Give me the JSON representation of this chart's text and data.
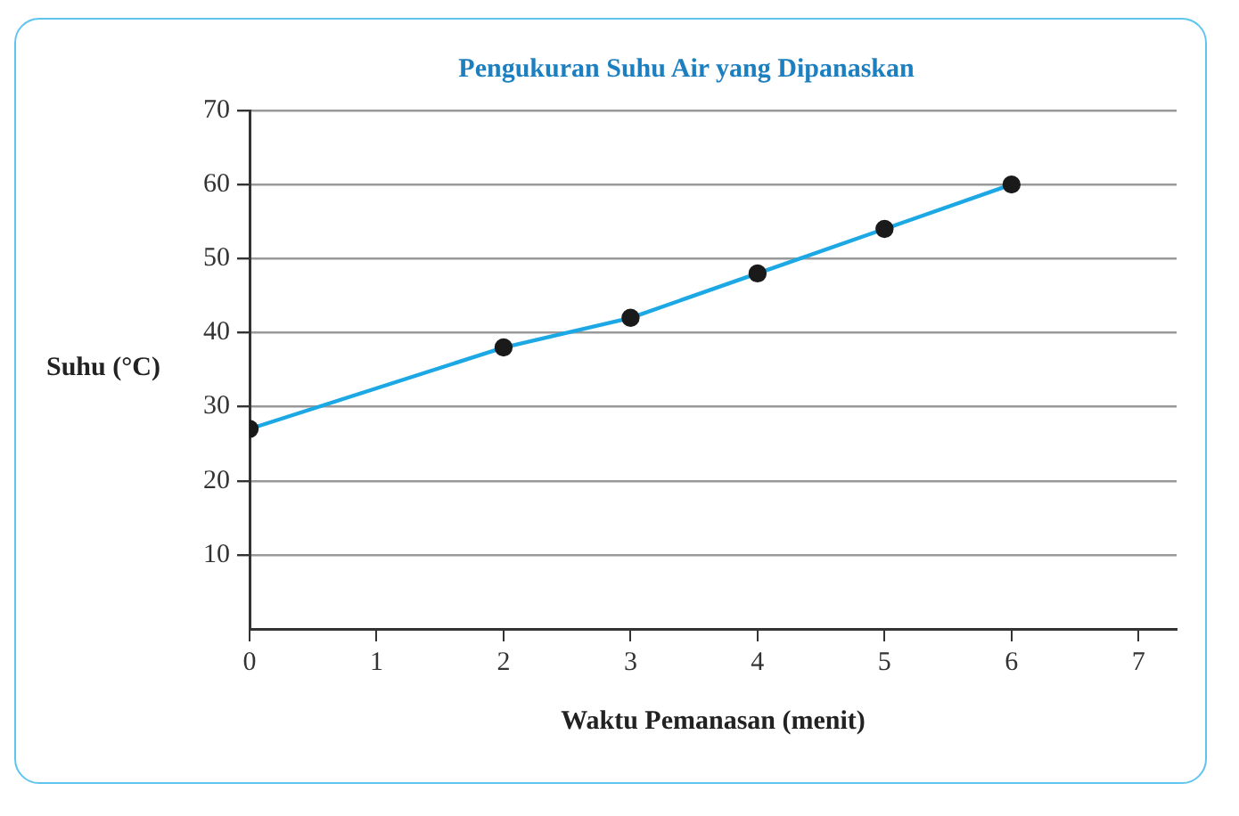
{
  "chart_data": {
    "type": "line",
    "title": "Pengukuran Suhu Air yang Dipanaskan",
    "xlabel": "Waktu Pemanasan (menit)",
    "ylabel": "Suhu (°C)",
    "x": [
      0,
      2,
      3,
      4,
      5,
      6
    ],
    "series": [
      {
        "color": "#1ba8e4",
        "values": [
          27,
          38,
          42,
          48,
          54,
          60
        ]
      }
    ],
    "xlim": [
      0,
      7.3
    ],
    "xticks": [
      0,
      1,
      2,
      3,
      4,
      5,
      6,
      7
    ],
    "ylim": [
      0,
      70
    ],
    "yticks": [
      10,
      20,
      30,
      40,
      50,
      60,
      70
    ],
    "grid": "y",
    "legend": false,
    "marker": "circle",
    "line_style": "solid"
  }
}
